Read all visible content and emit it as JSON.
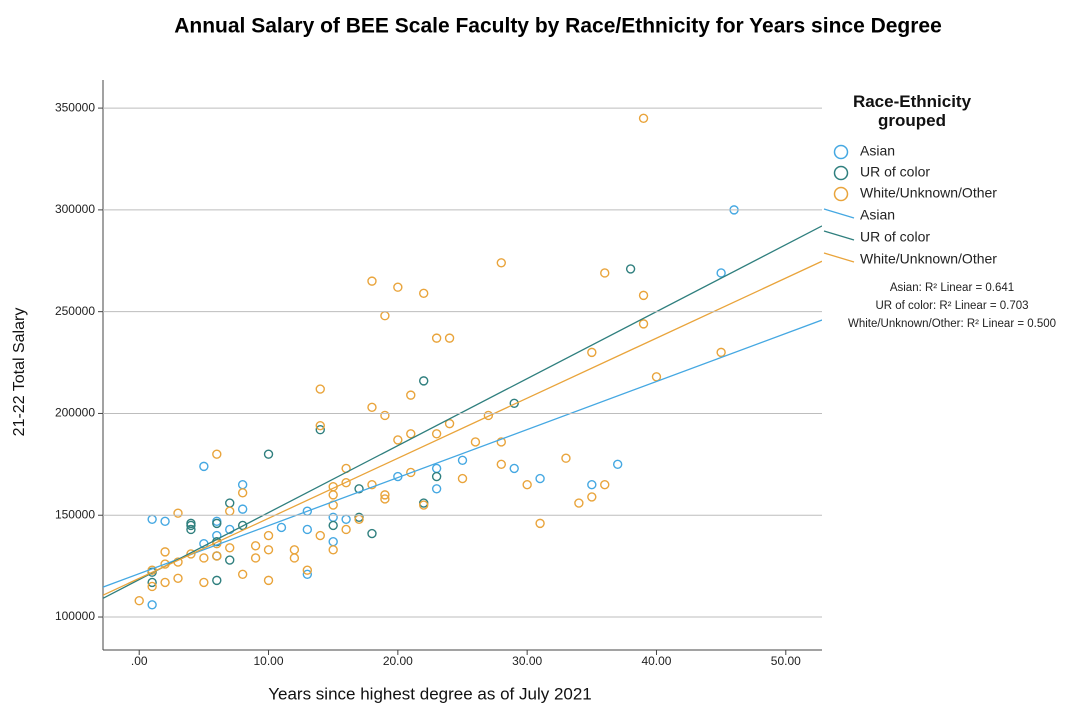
{
  "chart_data": {
    "type": "scatter",
    "title": "Annual Salary of BEE Scale Faculty by Race/Ethnicity for Years since Degree",
    "x_label": "Years since highest degree as of July 2021",
    "y_label": "21-22 Total Salary",
    "legend_title": "Race-Ethnicity grouped",
    "legend_position": "right",
    "grid": true,
    "xlim": [
      -2.8,
      52.8
    ],
    "ylim": [
      83800,
      363800
    ],
    "xticks": [
      {
        "value": 0,
        "label": ".00"
      },
      {
        "value": 10,
        "label": "10.00"
      },
      {
        "value": 20,
        "label": "20.00"
      },
      {
        "value": 30,
        "label": "30.00"
      },
      {
        "value": 40,
        "label": "40.00"
      },
      {
        "value": 50,
        "label": "50.00"
      }
    ],
    "yticks": [
      100000,
      150000,
      200000,
      250000,
      300000,
      350000
    ],
    "fit_labels": [
      "Asian: R² Linear = 0.641",
      "UR of color: R² Linear = 0.703",
      "White/Unknown/Other: R² Linear = 0.500"
    ],
    "series": [
      {
        "name": "Asian",
        "color": "#45a8e2",
        "fit": {
          "intercept": 121300,
          "slope": 2360
        },
        "x": [
          1,
          1,
          2,
          5,
          5,
          6,
          6,
          7,
          8,
          8,
          11,
          13,
          13,
          13,
          15,
          15,
          16,
          20,
          23,
          23,
          25,
          29,
          31,
          35,
          37,
          45,
          46
        ],
        "values": [
          148000,
          106000,
          147000,
          174000,
          136000,
          147000,
          140000,
          143000,
          165000,
          153000,
          144000,
          152000,
          143000,
          121000,
          149000,
          137000,
          148000,
          169000,
          173000,
          163000,
          177000,
          173000,
          168000,
          165000,
          175000,
          269000,
          300000
        ]
      },
      {
        "name": "UR of color",
        "color": "#2f7f7e",
        "fit": {
          "intercept": 118400,
          "slope": 3290
        },
        "x": [
          1,
          1,
          4,
          4,
          4,
          6,
          6,
          6,
          6,
          7,
          7,
          8,
          10,
          14,
          15,
          17,
          17,
          18,
          22,
          22,
          23,
          29,
          38
        ],
        "values": [
          117000,
          122000,
          143000,
          145000,
          146000,
          118000,
          130000,
          137000,
          146000,
          128000,
          156000,
          145000,
          180000,
          192000,
          145000,
          149000,
          163000,
          141000,
          216000,
          156000,
          169000,
          205000,
          271000
        ]
      },
      {
        "name": "White/Unknown/Other",
        "color": "#e9a43b",
        "fit": {
          "intercept": 119000,
          "slope": 2950
        },
        "x": [
          0,
          1,
          1,
          2,
          2,
          2,
          3,
          3,
          3,
          4,
          5,
          5,
          6,
          6,
          6,
          7,
          7,
          8,
          8,
          9,
          9,
          10,
          10,
          10,
          12,
          12,
          13,
          14,
          14,
          14,
          15,
          15,
          15,
          15,
          16,
          16,
          16,
          17,
          18,
          18,
          18,
          19,
          19,
          19,
          19,
          20,
          20,
          21,
          21,
          21,
          22,
          22,
          23,
          23,
          24,
          24,
          25,
          26,
          27,
          28,
          28,
          28,
          30,
          31,
          33,
          34,
          35,
          35,
          36,
          36,
          39,
          39,
          39,
          40,
          45
        ],
        "values": [
          108000,
          115000,
          123000,
          117000,
          126000,
          132000,
          119000,
          127000,
          151000,
          131000,
          117000,
          129000,
          130000,
          136000,
          180000,
          134000,
          152000,
          121000,
          161000,
          129000,
          135000,
          118000,
          133000,
          140000,
          129000,
          133000,
          123000,
          140000,
          194000,
          212000,
          133000,
          155000,
          160000,
          164000,
          143000,
          166000,
          173000,
          148000,
          165000,
          203000,
          265000,
          158000,
          160000,
          199000,
          248000,
          187000,
          262000,
          171000,
          190000,
          209000,
          155000,
          259000,
          190000,
          237000,
          237000,
          195000,
          168000,
          186000,
          199000,
          175000,
          186000,
          274000,
          165000,
          146000,
          178000,
          156000,
          159000,
          230000,
          165000,
          269000,
          244000,
          258000,
          345000,
          218000,
          230000
        ]
      }
    ]
  }
}
